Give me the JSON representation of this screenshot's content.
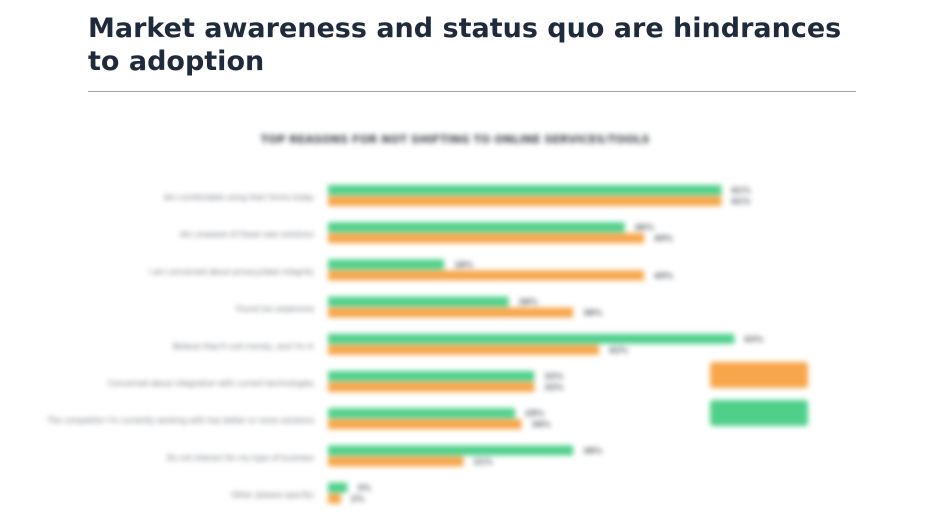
{
  "page": {
    "heading": "Market awareness and status quo are hindrances to adoption"
  },
  "chart_data": {
    "type": "bar",
    "orientation": "horizontal",
    "title": "TOP REASONS FOR NOT SHIFTING TO ONLINE SERVICES/TOOLS",
    "categories": [
      "Am comfortable using their forms today",
      "Am unaware of these new solutions",
      "I am concerned about privacy/data integrity",
      "Found too expensive",
      "Believe they'll cost money, and I'm in",
      "Concerned about integration with current technologies",
      "The competitor I'm currently working with has better or more solutions",
      "Do not interact for my type of business",
      "Other (please specify)"
    ],
    "series": [
      {
        "name": "",
        "color": "#4fd08a",
        "values": [
          61,
          46,
          18,
          28,
          63,
          32,
          29,
          38,
          3
        ]
      },
      {
        "name": "",
        "color": "#f7a64a",
        "values": [
          61,
          49,
          49,
          38,
          42,
          32,
          30,
          21,
          2
        ]
      }
    ],
    "data_labels": {
      "green": [
        "61%",
        "46%",
        "18%",
        "28%",
        "63%",
        "32%",
        "29%",
        "38%",
        "3%"
      ],
      "orange": [
        "61%",
        "49%",
        "49%",
        "38%",
        "42%",
        "32%",
        "30%",
        "21%",
        "2%"
      ]
    },
    "xlim": [
      0,
      65
    ],
    "grid": false,
    "legend": "right",
    "colors": {
      "green": "#4fd08a",
      "orange": "#f7a64a"
    }
  }
}
